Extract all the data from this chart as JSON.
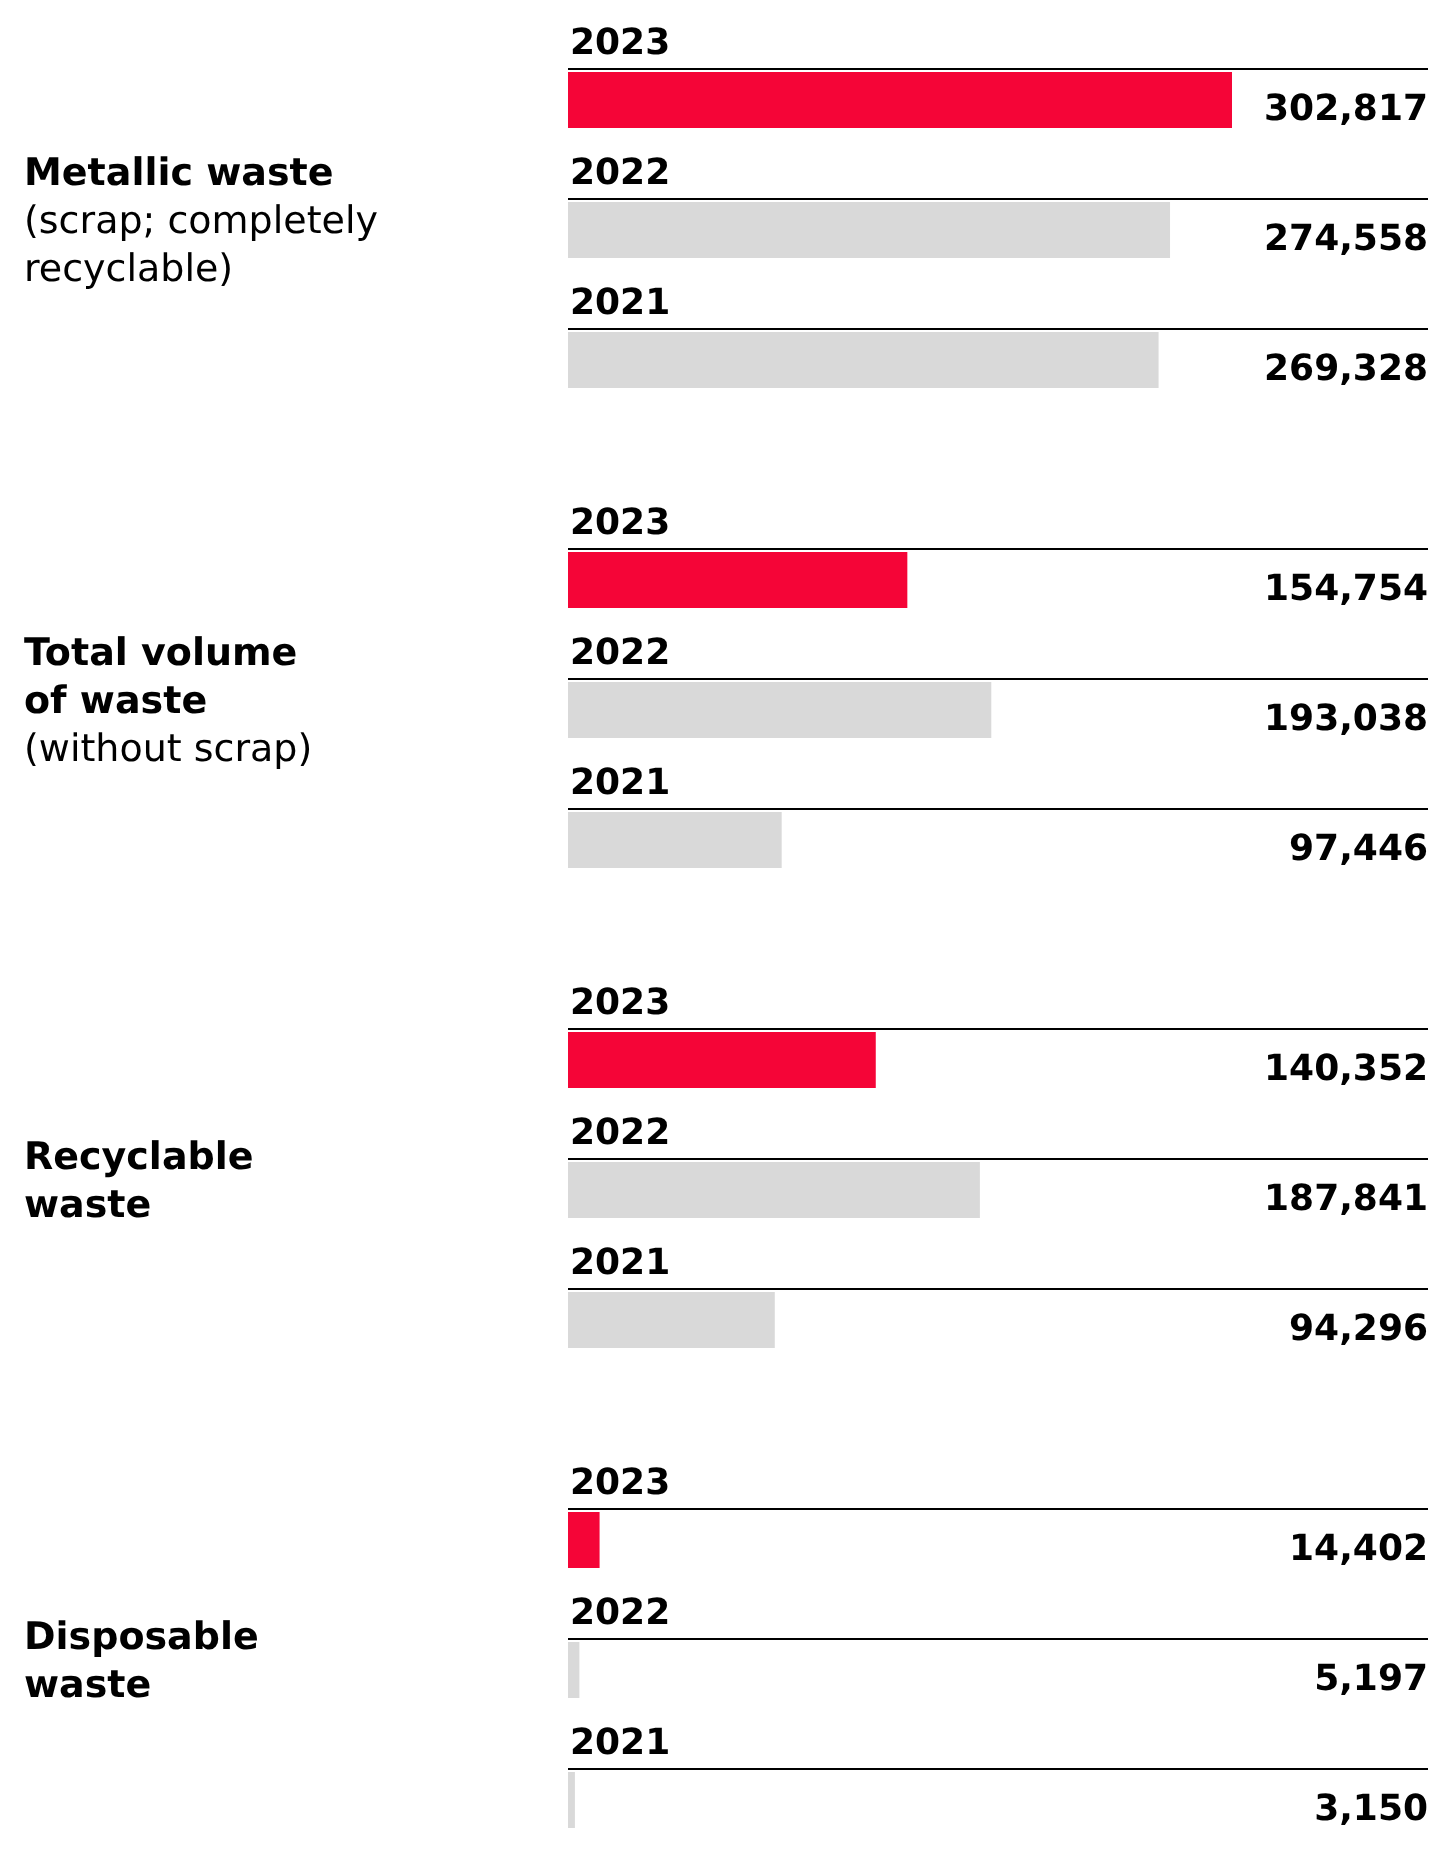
{
  "chart_data": {
    "type": "bar",
    "orientation": "horizontal",
    "categories": [
      "Metallic waste (scrap; completely recyclable)",
      "Total volume of waste (without scrap)",
      "Recyclable waste",
      "Disposable waste"
    ],
    "series": [
      {
        "name": "2023",
        "color": "#f50537",
        "values": [
          302817,
          154754,
          140352,
          14402
        ],
        "value_labels": [
          "302,817",
          "154,754",
          "140,352",
          "14,402"
        ]
      },
      {
        "name": "2022",
        "color": "#d9d9d9",
        "values": [
          274558,
          193038,
          187841,
          5197
        ],
        "value_labels": [
          "274,558",
          "193,038",
          "187,841",
          "5,197"
        ]
      },
      {
        "name": "2021",
        "color": "#d9d9d9",
        "values": [
          269328,
          97446,
          94296,
          3150
        ],
        "value_labels": [
          "269,328",
          "97,446",
          "94,296",
          "3,150"
        ]
      }
    ],
    "tick_labels": "y"
  }
}
